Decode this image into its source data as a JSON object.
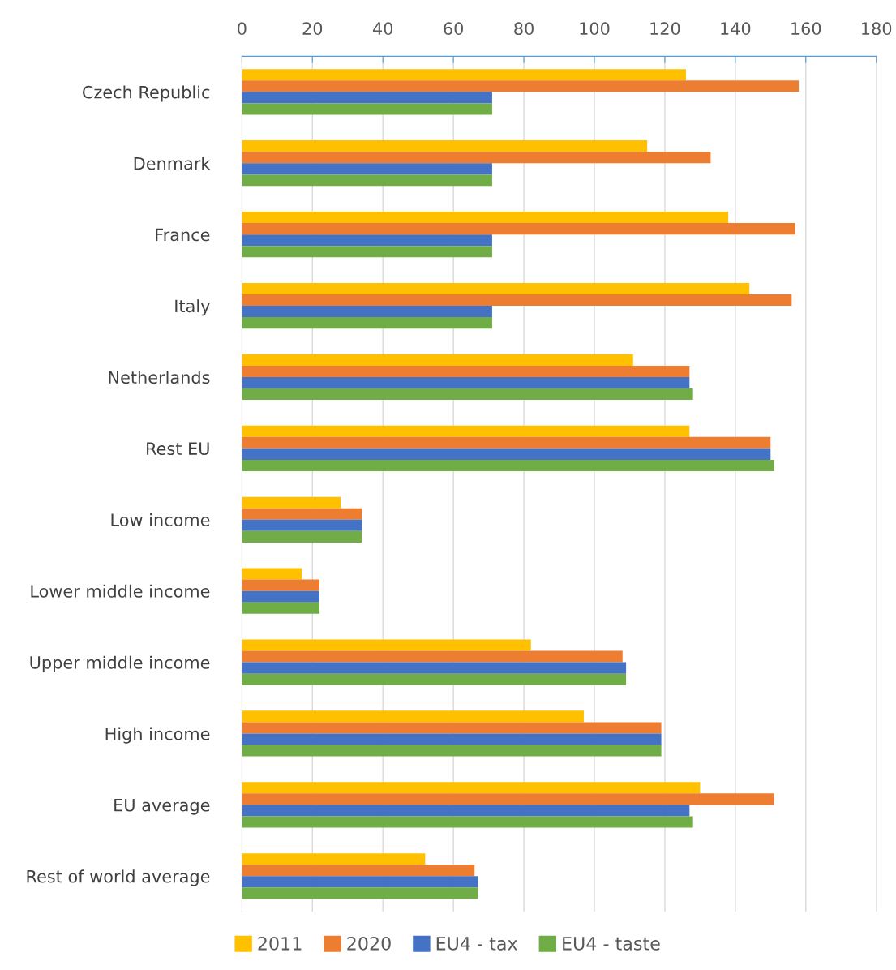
{
  "chart_data": {
    "type": "bar",
    "orientation": "horizontal",
    "categories": [
      "Czech Republic",
      "Denmark",
      "France",
      "Italy",
      "Netherlands",
      "Rest EU",
      "Low income",
      "Lower middle income",
      "Upper middle income",
      "High income",
      "EU average",
      "Rest of world average"
    ],
    "series": [
      {
        "name": "2011",
        "color": "#ffc000",
        "values": [
          126,
          115,
          138,
          144,
          111,
          127,
          28,
          17,
          82,
          97,
          130,
          52
        ]
      },
      {
        "name": "2020",
        "color": "#ed7d31",
        "values": [
          158,
          133,
          157,
          156,
          127,
          150,
          34,
          22,
          108,
          119,
          151,
          66
        ]
      },
      {
        "name": "EU4 - tax",
        "color": "#4472c4",
        "values": [
          71,
          71,
          71,
          71,
          127,
          150,
          34,
          22,
          109,
          119,
          127,
          67
        ]
      },
      {
        "name": "EU4 - taste",
        "color": "#70ad47",
        "values": [
          71,
          71,
          71,
          71,
          128,
          151,
          34,
          22,
          109,
          119,
          128,
          67
        ]
      }
    ],
    "xlim": [
      0,
      180
    ],
    "xticks": [
      0,
      20,
      40,
      60,
      80,
      100,
      120,
      140,
      160,
      180
    ],
    "grid": "x",
    "legend": "bottom"
  }
}
